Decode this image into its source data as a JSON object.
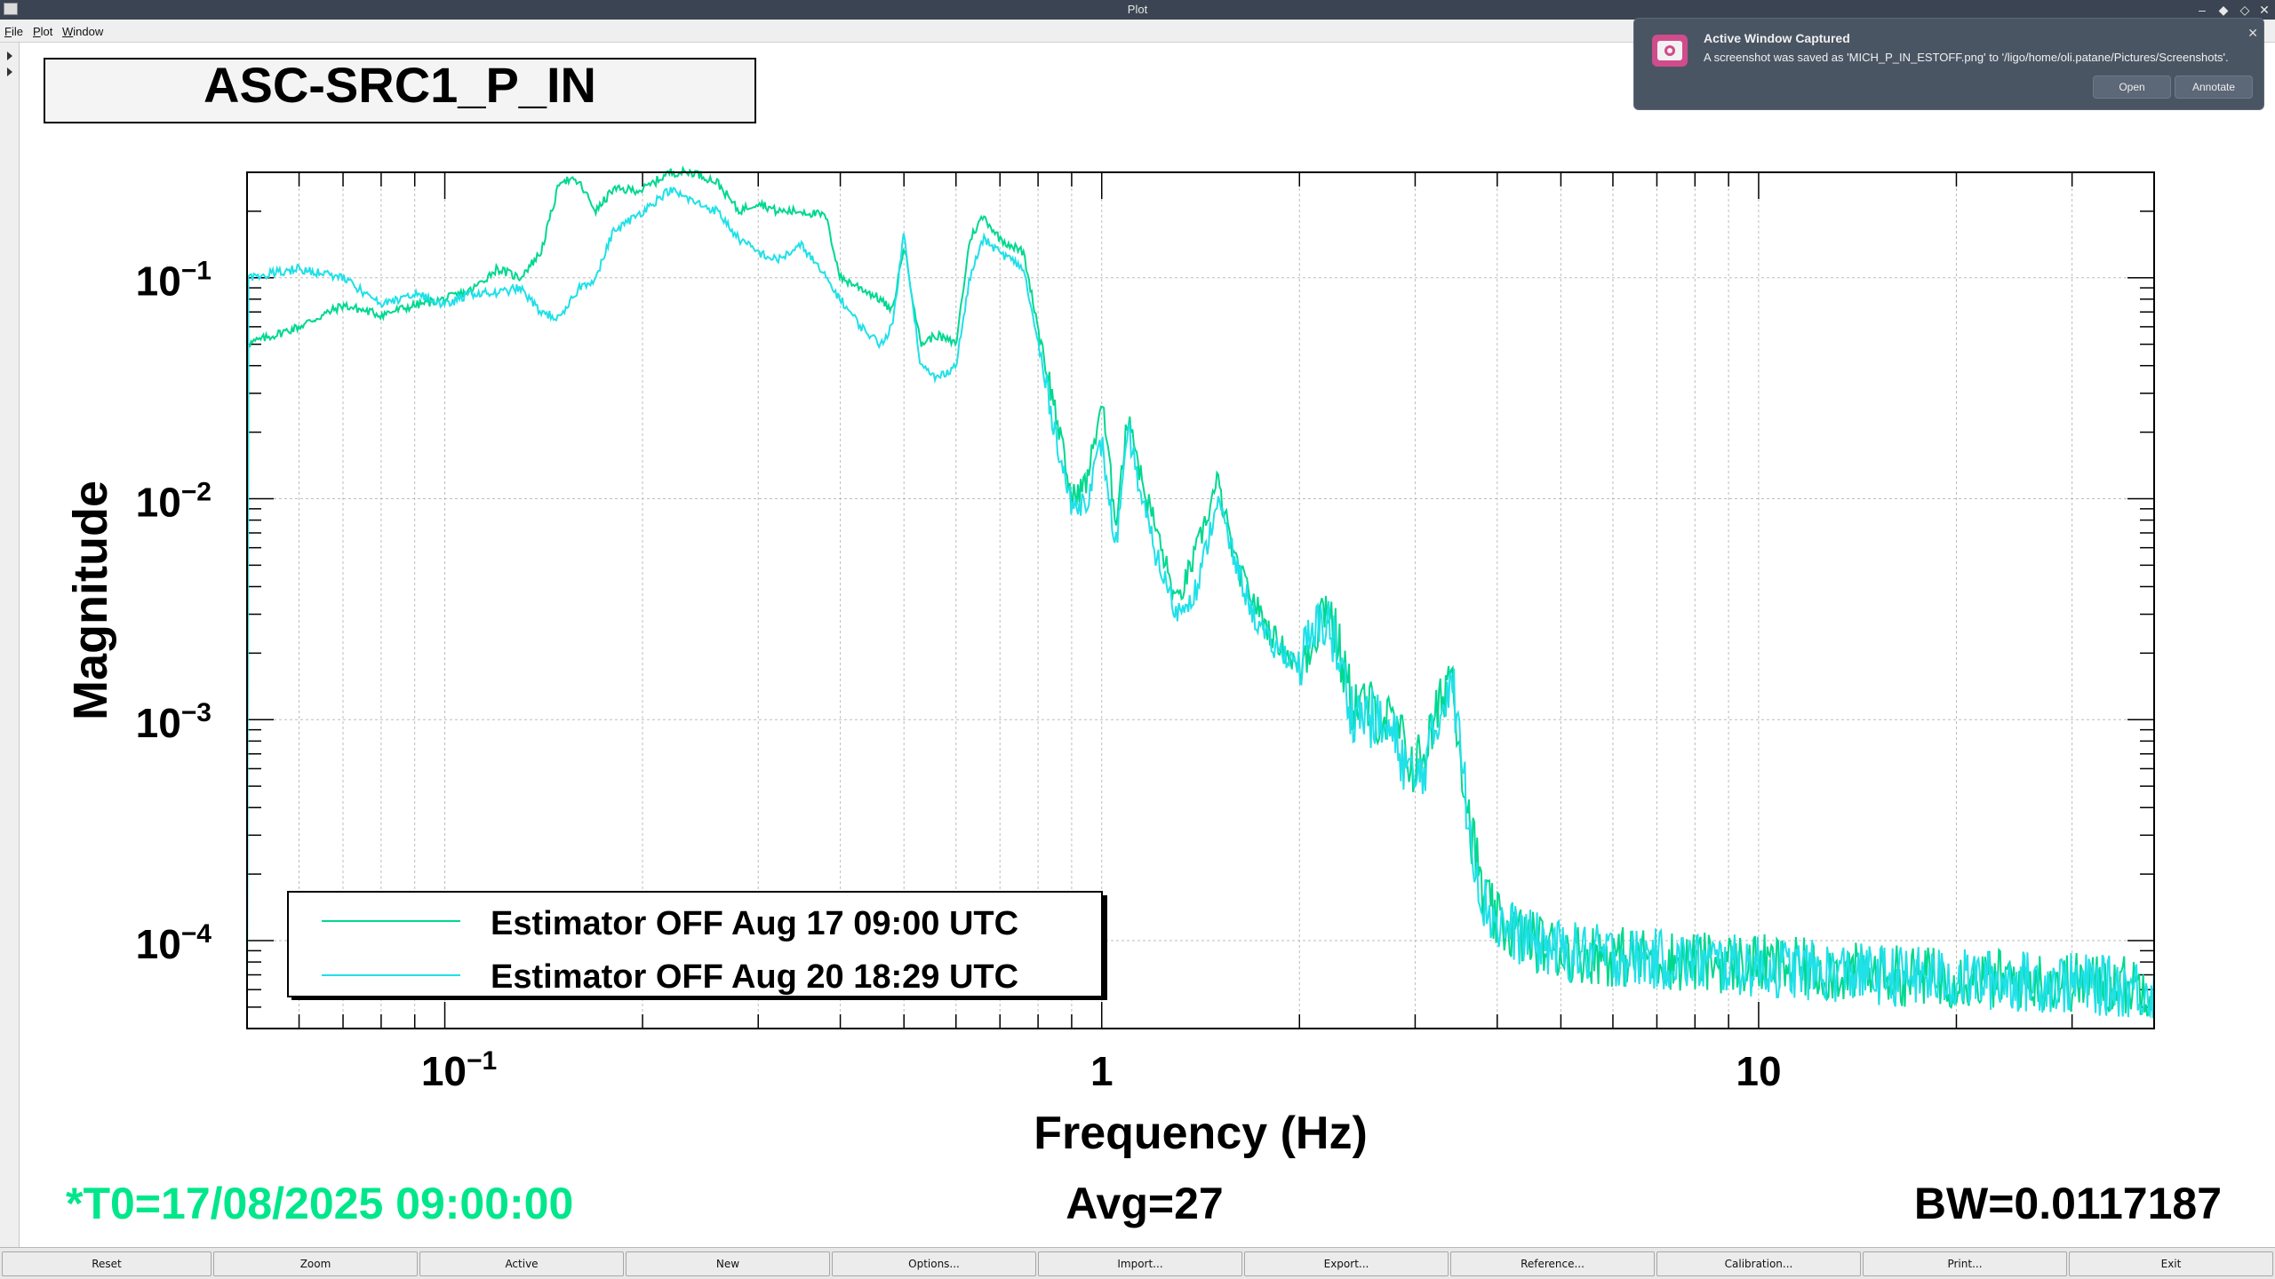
{
  "window": {
    "title": "Plot"
  },
  "menu": [
    {
      "label": "File",
      "mnemonic": "F",
      "rest": "ile"
    },
    {
      "label": "Plot",
      "mnemonic": "P",
      "rest": "lot"
    },
    {
      "label": "Window",
      "mnemonic": "W",
      "rest": "indow"
    }
  ],
  "notification": {
    "title": "Active Window Captured",
    "body": "A screenshot was saved as 'MICH_P_IN_ESTOFF.png' to '/ligo/home/oli.patane/Pictures/Screenshots'.",
    "open_label": "Open",
    "annotate_label": "Annotate",
    "icon": "screenshot-app-icon"
  },
  "plot": {
    "title_box": "ASC-SRC1_P_IN",
    "ylabel": "Magnitude",
    "xlabel": "Frequency (Hz)",
    "info_left": "*T0=17/08/2025 09:00:00",
    "info_center": "Avg=27",
    "info_right": "BW=0.0117187",
    "info_left_color": "#00e68a",
    "y_tick_base": "10",
    "y_ticks": [
      {
        "value": 0.1,
        "exp": "−1"
      },
      {
        "value": 0.01,
        "exp": "−2"
      },
      {
        "value": 0.001,
        "exp": "−3"
      },
      {
        "value": 0.0001,
        "exp": "−4"
      }
    ],
    "x_ticks": [
      {
        "value": 0.1,
        "label": "10",
        "exp": "−1"
      },
      {
        "value": 1,
        "label": "1",
        "exp": ""
      },
      {
        "value": 10,
        "label": "10",
        "exp": ""
      }
    ]
  },
  "chart_data": {
    "type": "line",
    "title": "ASC-SRC1_P_IN",
    "xlabel": "Frequency (Hz)",
    "ylabel": "Magnitude",
    "xscale": "log",
    "yscale": "log",
    "xlim": [
      0.05,
      40
    ],
    "ylim": [
      4e-05,
      0.3
    ],
    "grid": true,
    "legend_placement": "bottom-left",
    "series": [
      {
        "name": "Estimator OFF Aug 17 09:00 UTC",
        "color": "#00d890",
        "x": [
          0.05,
          0.06,
          0.07,
          0.08,
          0.09,
          0.1,
          0.11,
          0.12,
          0.13,
          0.14,
          0.15,
          0.16,
          0.17,
          0.18,
          0.2,
          0.22,
          0.24,
          0.26,
          0.28,
          0.3,
          0.32,
          0.35,
          0.38,
          0.4,
          0.43,
          0.46,
          0.48,
          0.5,
          0.53,
          0.56,
          0.6,
          0.63,
          0.66,
          0.7,
          0.73,
          0.76,
          0.8,
          0.85,
          0.9,
          0.95,
          1.0,
          1.05,
          1.1,
          1.15,
          1.2,
          1.3,
          1.4,
          1.5,
          1.6,
          1.7,
          1.8,
          2.0,
          2.2,
          2.4,
          2.6,
          2.8,
          3.0,
          3.2,
          3.4,
          3.6,
          3.8,
          4.0,
          4.5,
          5,
          6,
          8,
          10,
          15,
          20,
          30,
          40
        ],
        "y": [
          0.05,
          0.06,
          0.075,
          0.068,
          0.075,
          0.08,
          0.088,
          0.11,
          0.1,
          0.13,
          0.28,
          0.27,
          0.2,
          0.25,
          0.25,
          0.3,
          0.3,
          0.27,
          0.2,
          0.22,
          0.2,
          0.2,
          0.19,
          0.1,
          0.09,
          0.08,
          0.07,
          0.14,
          0.05,
          0.055,
          0.05,
          0.15,
          0.19,
          0.15,
          0.14,
          0.13,
          0.06,
          0.025,
          0.01,
          0.012,
          0.028,
          0.008,
          0.025,
          0.012,
          0.008,
          0.0033,
          0.006,
          0.012,
          0.005,
          0.0035,
          0.0025,
          0.0017,
          0.0035,
          0.0012,
          0.0011,
          0.0009,
          0.0006,
          0.0009,
          0.0018,
          0.0004,
          0.00016,
          0.00012,
          0.0001,
          9e-05,
          8.5e-05,
          8e-05,
          7.8e-05,
          7e-05,
          6.8e-05,
          6.5e-05,
          6.2e-05
        ]
      },
      {
        "name": "Estimator OFF Aug 20 18:29 UTC",
        "color": "#20e0e8",
        "x": [
          0.05,
          0.06,
          0.07,
          0.08,
          0.09,
          0.1,
          0.11,
          0.12,
          0.13,
          0.14,
          0.15,
          0.16,
          0.17,
          0.18,
          0.2,
          0.22,
          0.24,
          0.26,
          0.28,
          0.3,
          0.32,
          0.35,
          0.38,
          0.4,
          0.43,
          0.46,
          0.48,
          0.5,
          0.53,
          0.56,
          0.6,
          0.63,
          0.66,
          0.7,
          0.73,
          0.76,
          0.8,
          0.85,
          0.9,
          0.95,
          1.0,
          1.05,
          1.1,
          1.15,
          1.2,
          1.3,
          1.4,
          1.5,
          1.6,
          1.7,
          1.8,
          2.0,
          2.2,
          2.4,
          2.6,
          2.8,
          3.0,
          3.2,
          3.4,
          3.6,
          3.8,
          4.0,
          4.5,
          5,
          6,
          8,
          10,
          15,
          20,
          30,
          40
        ],
        "y": [
          0.1,
          0.11,
          0.1,
          0.075,
          0.085,
          0.075,
          0.085,
          0.085,
          0.09,
          0.07,
          0.065,
          0.09,
          0.1,
          0.16,
          0.2,
          0.25,
          0.22,
          0.2,
          0.15,
          0.13,
          0.12,
          0.14,
          0.1,
          0.08,
          0.06,
          0.05,
          0.06,
          0.16,
          0.04,
          0.035,
          0.04,
          0.1,
          0.15,
          0.13,
          0.12,
          0.11,
          0.05,
          0.02,
          0.009,
          0.01,
          0.018,
          0.006,
          0.02,
          0.01,
          0.006,
          0.003,
          0.004,
          0.01,
          0.005,
          0.003,
          0.0022,
          0.0018,
          0.003,
          0.0011,
          0.001,
          0.0008,
          0.0005,
          0.0008,
          0.0017,
          0.0004,
          0.00015,
          0.00012,
          0.0001,
          9e-05,
          8.5e-05,
          8e-05,
          7.6e-05,
          7e-05,
          6.7e-05,
          6.4e-05,
          6e-05
        ]
      }
    ]
  },
  "buttons": [
    {
      "name": "reset-button",
      "label": "Reset"
    },
    {
      "name": "zoom-button",
      "label": "Zoom"
    },
    {
      "name": "active-button",
      "label": "Active"
    },
    {
      "name": "new-button",
      "label": "New"
    },
    {
      "name": "options-button",
      "label": "Options..."
    },
    {
      "name": "import-button",
      "label": "Import..."
    },
    {
      "name": "export-button",
      "label": "Export..."
    },
    {
      "name": "reference-button",
      "label": "Reference..."
    },
    {
      "name": "calibration-button",
      "label": "Calibration..."
    },
    {
      "name": "print-button",
      "label": "Print..."
    },
    {
      "name": "exit-button",
      "label": "Exit"
    }
  ]
}
